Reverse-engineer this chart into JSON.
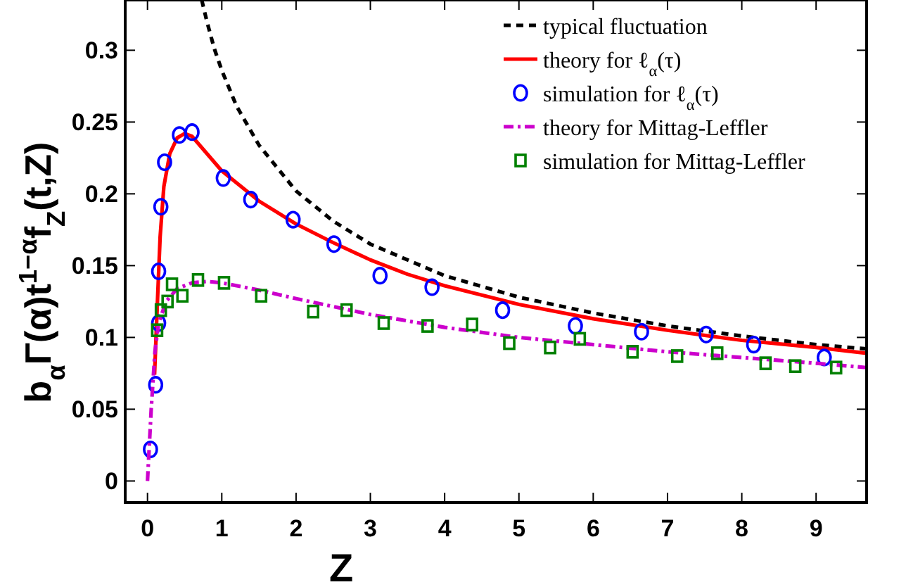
{
  "chart_data": {
    "type": "line",
    "xlabel": "Z",
    "ylabel": "b$_{α}$Γ(α)t$^{1−α}$f$_{Z}$(t,Z)",
    "xlim": [
      -0.3,
      9.68
    ],
    "ylim": [
      -0.015,
      0.335
    ],
    "xticks": [
      0,
      1,
      2,
      3,
      4,
      5,
      6,
      7,
      8,
      9
    ],
    "yticks": [
      0,
      0.05,
      0.1,
      0.15,
      0.2,
      0.25,
      0.3
    ],
    "grid": false,
    "legend": "top right",
    "series": [
      {
        "name": "typical fluctuation",
        "color": "#000000",
        "line_style": "dashed",
        "marker": "none",
        "x": [
          0.73,
          0.8,
          0.9,
          1,
          1.2,
          1.5,
          2,
          2.5,
          3,
          4,
          5,
          6,
          7,
          8,
          9,
          9.68
        ],
        "values": [
          0.335,
          0.32,
          0.301,
          0.286,
          0.261,
          0.234,
          0.202,
          0.181,
          0.165,
          0.143,
          0.128,
          0.117,
          0.108,
          0.101,
          0.095,
          0.092
        ]
      },
      {
        "name": "theory for ℓ$_{α}$(τ)",
        "color": "#ff0000",
        "line_style": "solid",
        "marker": "none",
        "x": [
          0.095,
          0.13,
          0.17,
          0.22,
          0.3,
          0.4,
          0.5,
          0.6,
          0.8,
          1,
          1.5,
          2,
          2.5,
          3,
          3.5,
          4,
          5,
          6,
          7,
          8,
          9,
          9.68
        ],
        "values": [
          0.074,
          0.12,
          0.17,
          0.205,
          0.228,
          0.239,
          0.242,
          0.24,
          0.228,
          0.216,
          0.195,
          0.179,
          0.166,
          0.154,
          0.144,
          0.136,
          0.123,
          0.113,
          0.105,
          0.098,
          0.093,
          0.089
        ]
      },
      {
        "name": "simulation for ℓ$_{α}$(τ)",
        "type": "scatter",
        "color": "#0000ff",
        "marker": "circle",
        "x": [
          0.04,
          0.11,
          0.15,
          0.15,
          0.18,
          0.23,
          0.43,
          0.6,
          1.02,
          1.39,
          1.96,
          2.51,
          3.13,
          3.83,
          4.78,
          5.76,
          6.65,
          7.52,
          8.16,
          9.11
        ],
        "values": [
          0.022,
          0.067,
          0.11,
          0.146,
          0.191,
          0.222,
          0.241,
          0.243,
          0.211,
          0.196,
          0.182,
          0.165,
          0.143,
          0.135,
          0.119,
          0.108,
          0.104,
          0.102,
          0.095,
          0.086
        ]
      },
      {
        "name": "theory for Mittag-Leffler",
        "color": "#cc00cc",
        "line_style": "dashdot",
        "marker": "none",
        "x": [
          0,
          0.05,
          0.1,
          0.15,
          0.25,
          0.4,
          0.6,
          0.8,
          1,
          1.5,
          2,
          3,
          4,
          5,
          6,
          7,
          8,
          9,
          9.68
        ],
        "values": [
          0,
          0.05,
          0.09,
          0.11,
          0.125,
          0.134,
          0.138,
          0.139,
          0.138,
          0.133,
          0.127,
          0.116,
          0.107,
          0.1,
          0.095,
          0.09,
          0.086,
          0.082,
          0.079
        ]
      },
      {
        "name": "simulation for Mittag-Leffler",
        "type": "scatter",
        "color": "#008000",
        "marker": "square",
        "x": [
          0.13,
          0.18,
          0.27,
          0.33,
          0.47,
          0.68,
          1.03,
          1.53,
          2.23,
          2.68,
          3.18,
          3.77,
          4.37,
          4.87,
          5.42,
          5.82,
          6.53,
          7.13,
          7.67,
          8.32,
          8.72,
          9.27
        ],
        "values": [
          0.105,
          0.119,
          0.125,
          0.137,
          0.129,
          0.14,
          0.138,
          0.129,
          0.118,
          0.119,
          0.11,
          0.108,
          0.109,
          0.096,
          0.093,
          0.099,
          0.09,
          0.087,
          0.089,
          0.082,
          0.08,
          0.079
        ]
      }
    ]
  }
}
